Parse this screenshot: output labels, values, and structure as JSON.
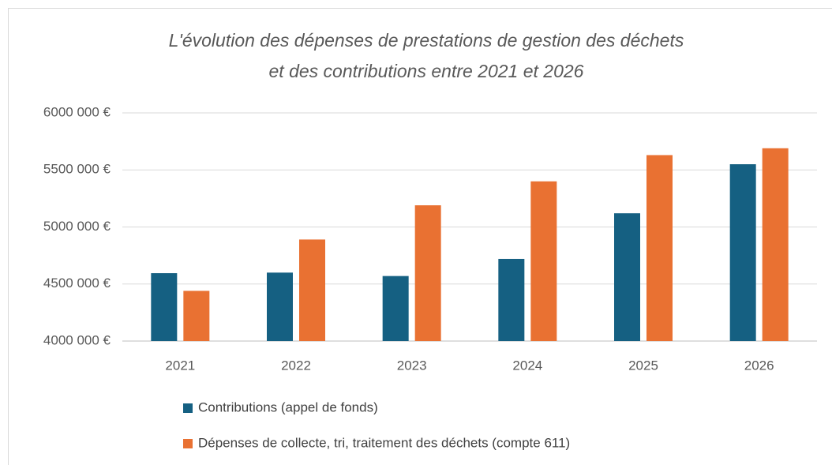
{
  "chart_data": {
    "type": "bar",
    "title": [
      "L'évolution des dépenses de prestations de gestion des déchets",
      "et des contributions entre 2021 et 2026"
    ],
    "categories": [
      "2021",
      "2022",
      "2023",
      "2024",
      "2025",
      "2026"
    ],
    "series": [
      {
        "name": "Contributions (appel de fonds)",
        "color": "#156082",
        "values": [
          4595000,
          4600000,
          4570000,
          4720000,
          5120000,
          5550000
        ]
      },
      {
        "name": "Dépenses de collecte, tri, traitement des déchets (compte 611)",
        "color": "#e97132",
        "values": [
          4440000,
          4890000,
          5190000,
          5400000,
          5630000,
          5690000
        ]
      }
    ],
    "ylim": [
      4000000,
      6000000
    ],
    "yticks": [
      {
        "value": 4000000,
        "label": "4000 000 €"
      },
      {
        "value": 4500000,
        "label": "4500 000 €"
      },
      {
        "value": 5000000,
        "label": "5000 000 €"
      },
      {
        "value": 5500000,
        "label": "5500 000 €"
      },
      {
        "value": 6000000,
        "label": "6000 000 €"
      }
    ],
    "grid": true,
    "legend": "bottom"
  }
}
